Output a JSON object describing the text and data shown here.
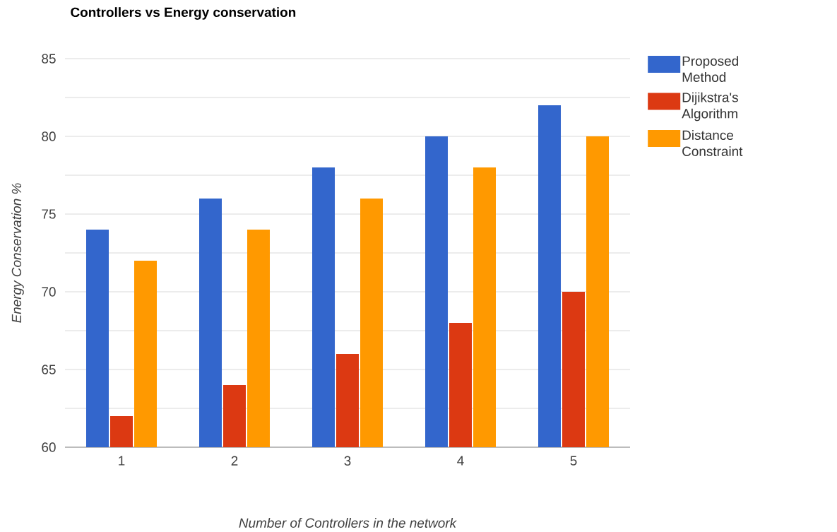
{
  "chart_data": {
    "type": "bar",
    "title": "Controllers vs Energy conservation",
    "xlabel": "Number of Controllers in the network",
    "ylabel": "Energy Conservation %",
    "categories": [
      "1",
      "2",
      "3",
      "4",
      "5"
    ],
    "series": [
      {
        "name": "Proposed Method",
        "color": "#3366cc",
        "values": [
          74,
          76,
          78,
          80,
          82
        ]
      },
      {
        "name": "Dijikstra's Algorithm",
        "color": "#dc3912",
        "values": [
          62,
          64,
          66,
          68,
          70
        ]
      },
      {
        "name": "Distance Constraint",
        "color": "#ff9900",
        "values": [
          72,
          74,
          76,
          78,
          80
        ]
      }
    ],
    "ylim": [
      60,
      85
    ],
    "yticks": [
      60,
      {
        "value": 62.5,
        "label": null
      },
      65,
      {
        "value": 67.5,
        "label": null
      },
      70,
      {
        "value": 72.5,
        "label": null
      },
      75,
      {
        "value": 77.5,
        "label": null
      },
      80,
      {
        "value": 82.5,
        "label": null
      },
      85
    ],
    "grid": "y",
    "legend": "right"
  }
}
